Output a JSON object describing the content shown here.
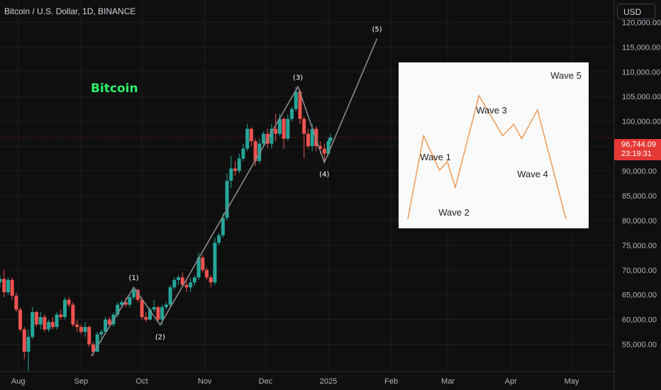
{
  "header": {
    "symbol_title": "Bitcoin / U.S. Dollar, 1D, BINANCE"
  },
  "toolbar": {
    "currency": "USD"
  },
  "price_tag": {
    "price": "96,744.09",
    "countdown": "23:19:31"
  },
  "annotation_text": "Bitcoin",
  "inset": {
    "labels": [
      "Wave 1",
      "Wave 2",
      "Wave 3",
      "Wave 4",
      "Wave 5"
    ],
    "path_x": [
      0,
      1,
      2,
      2.5,
      3,
      4.5,
      6,
      6.7,
      7.2,
      8.2,
      10
    ],
    "path_y": [
      0,
      2.9,
      1.7,
      2,
      1.1,
      4.3,
      2.9,
      3.3,
      2.8,
      3.8,
      0
    ]
  },
  "colors": {
    "background": "#0f0f0f",
    "up_candle": "#26a69a",
    "down_candle": "#ef5350",
    "wave_line": "#8a8a8a",
    "bitcoin_label": "#2ef26b",
    "inset_line": "#f0a060",
    "axis_text": "#b2b5be",
    "price_line": "#e53935"
  },
  "chart_data": {
    "type": "candlestick",
    "title": "Bitcoin / U.S. Dollar, 1D, BINANCE",
    "y_axis": {
      "ticks": [
        55000,
        60000,
        65000,
        70000,
        75000,
        80000,
        85000,
        90000,
        95000,
        100000,
        105000,
        110000,
        115000,
        120000
      ],
      "tick_labels": [
        "55,000.00",
        "60,000.00",
        "65,000.00",
        "70,000.00",
        "75,000.00",
        "80,000.00",
        "85,000.00",
        "90,000.00",
        "95,000.00",
        "100,000.00",
        "105,000.00",
        "110,000.00",
        "115,000.00",
        "120,000.00"
      ],
      "ylim": [
        49500,
        124500
      ]
    },
    "x_axis": {
      "tick_labels": [
        "Aug",
        "Sep",
        "Oct",
        "Nov",
        "Dec",
        "2025",
        "Feb",
        "Mar",
        "Apr",
        "May"
      ],
      "tick_dates": [
        "2024-08-01",
        "2024-09-01",
        "2024-10-01",
        "2024-11-01",
        "2024-12-01",
        "2025-01-01",
        "2025-02-01",
        "2025-03-01",
        "2025-04-01",
        "2025-05-01"
      ],
      "xlim": [
        "2024-07-23",
        "2025-05-22"
      ]
    },
    "last_price": 96744.09,
    "elliott_waves": [
      {
        "label": "",
        "date": "2024-09-06",
        "price": 52600
      },
      {
        "label": "(1)",
        "date": "2024-09-27",
        "price": 66500
      },
      {
        "label": "(2)",
        "date": "2024-10-10",
        "price": 58900
      },
      {
        "label": "(3)",
        "date": "2024-12-17",
        "price": 107000
      },
      {
        "label": "(4)",
        "date": "2024-12-30",
        "price": 91700
      },
      {
        "label": "(5)",
        "date": "2025-01-25",
        "price": 116700
      }
    ],
    "candles": [
      {
        "date": "2024-07-23",
        "o": 67500,
        "h": 69000,
        "l": 66500,
        "c": 68200
      },
      {
        "date": "2024-07-25",
        "o": 68200,
        "h": 70000,
        "l": 64500,
        "c": 65500
      },
      {
        "date": "2024-07-27",
        "o": 65500,
        "h": 68500,
        "l": 65000,
        "c": 68000
      },
      {
        "date": "2024-07-29",
        "o": 68000,
        "h": 68500,
        "l": 64000,
        "c": 64800
      },
      {
        "date": "2024-07-31",
        "o": 64800,
        "h": 65500,
        "l": 61500,
        "c": 62000
      },
      {
        "date": "2024-08-02",
        "o": 62000,
        "h": 62500,
        "l": 57500,
        "c": 58000
      },
      {
        "date": "2024-08-04",
        "o": 58000,
        "h": 58500,
        "l": 52000,
        "c": 53500
      },
      {
        "date": "2024-08-06",
        "o": 53500,
        "h": 58000,
        "l": 49500,
        "c": 56500
      },
      {
        "date": "2024-08-08",
        "o": 56500,
        "h": 62500,
        "l": 56000,
        "c": 61500
      },
      {
        "date": "2024-08-10",
        "o": 61500,
        "h": 61800,
        "l": 58500,
        "c": 59000
      },
      {
        "date": "2024-08-12",
        "o": 59000,
        "h": 61500,
        "l": 58000,
        "c": 60500
      },
      {
        "date": "2024-08-14",
        "o": 60500,
        "h": 61000,
        "l": 57500,
        "c": 58000
      },
      {
        "date": "2024-08-16",
        "o": 58000,
        "h": 60000,
        "l": 57500,
        "c": 59500
      },
      {
        "date": "2024-08-18",
        "o": 59500,
        "h": 60500,
        "l": 58000,
        "c": 58500
      },
      {
        "date": "2024-08-20",
        "o": 58500,
        "h": 61500,
        "l": 58000,
        "c": 61000
      },
      {
        "date": "2024-08-22",
        "o": 61000,
        "h": 62000,
        "l": 60000,
        "c": 60500
      },
      {
        "date": "2024-08-24",
        "o": 60500,
        "h": 64500,
        "l": 60000,
        "c": 64000
      },
      {
        "date": "2024-08-26",
        "o": 64000,
        "h": 64500,
        "l": 62500,
        "c": 63000
      },
      {
        "date": "2024-08-28",
        "o": 63000,
        "h": 63500,
        "l": 58500,
        "c": 59000
      },
      {
        "date": "2024-08-30",
        "o": 59000,
        "h": 60000,
        "l": 57500,
        "c": 58500
      },
      {
        "date": "2024-09-01",
        "o": 58500,
        "h": 59000,
        "l": 57000,
        "c": 57500
      },
      {
        "date": "2024-09-03",
        "o": 57500,
        "h": 59500,
        "l": 56500,
        "c": 58500
      },
      {
        "date": "2024-09-05",
        "o": 58500,
        "h": 58800,
        "l": 54500,
        "c": 55000
      },
      {
        "date": "2024-09-07",
        "o": 55000,
        "h": 55500,
        "l": 52600,
        "c": 53500
      },
      {
        "date": "2024-09-09",
        "o": 53500,
        "h": 57500,
        "l": 53500,
        "c": 57000
      },
      {
        "date": "2024-09-11",
        "o": 57000,
        "h": 58000,
        "l": 55500,
        "c": 57500
      },
      {
        "date": "2024-09-13",
        "o": 57500,
        "h": 60500,
        "l": 57000,
        "c": 60000
      },
      {
        "date": "2024-09-15",
        "o": 60000,
        "h": 60500,
        "l": 58500,
        "c": 59000
      },
      {
        "date": "2024-09-17",
        "o": 59000,
        "h": 61500,
        "l": 58500,
        "c": 61000
      },
      {
        "date": "2024-09-19",
        "o": 61000,
        "h": 63500,
        "l": 60500,
        "c": 63000
      },
      {
        "date": "2024-09-21",
        "o": 63000,
        "h": 64000,
        "l": 62500,
        "c": 63500
      },
      {
        "date": "2024-09-23",
        "o": 63500,
        "h": 64500,
        "l": 62500,
        "c": 63000
      },
      {
        "date": "2024-09-25",
        "o": 63000,
        "h": 65000,
        "l": 62500,
        "c": 64500
      },
      {
        "date": "2024-09-27",
        "o": 64500,
        "h": 66500,
        "l": 64000,
        "c": 66000
      },
      {
        "date": "2024-09-29",
        "o": 66000,
        "h": 66200,
        "l": 63500,
        "c": 64000
      },
      {
        "date": "2024-10-01",
        "o": 64000,
        "h": 64500,
        "l": 60000,
        "c": 60500
      },
      {
        "date": "2024-10-03",
        "o": 60500,
        "h": 61500,
        "l": 59500,
        "c": 60000
      },
      {
        "date": "2024-10-05",
        "o": 60000,
        "h": 62500,
        "l": 59800,
        "c": 62000
      },
      {
        "date": "2024-10-07",
        "o": 62000,
        "h": 64000,
        "l": 61500,
        "c": 62500
      },
      {
        "date": "2024-10-09",
        "o": 62500,
        "h": 62800,
        "l": 59500,
        "c": 60000
      },
      {
        "date": "2024-10-11",
        "o": 60000,
        "h": 63000,
        "l": 58900,
        "c": 62500
      },
      {
        "date": "2024-10-13",
        "o": 62500,
        "h": 63500,
        "l": 62000,
        "c": 63000
      },
      {
        "date": "2024-10-15",
        "o": 63000,
        "h": 67000,
        "l": 62500,
        "c": 66500
      },
      {
        "date": "2024-10-17",
        "o": 66500,
        "h": 68500,
        "l": 66000,
        "c": 68000
      },
      {
        "date": "2024-10-19",
        "o": 68000,
        "h": 69000,
        "l": 67000,
        "c": 68500
      },
      {
        "date": "2024-10-21",
        "o": 68500,
        "h": 69500,
        "l": 66500,
        "c": 67000
      },
      {
        "date": "2024-10-23",
        "o": 67000,
        "h": 68000,
        "l": 65500,
        "c": 66500
      },
      {
        "date": "2024-10-25",
        "o": 66500,
        "h": 68500,
        "l": 65500,
        "c": 67500
      },
      {
        "date": "2024-10-27",
        "o": 67500,
        "h": 69000,
        "l": 66800,
        "c": 68500
      },
      {
        "date": "2024-10-29",
        "o": 68500,
        "h": 73500,
        "l": 68000,
        "c": 72500
      },
      {
        "date": "2024-10-31",
        "o": 72500,
        "h": 73000,
        "l": 69500,
        "c": 70000
      },
      {
        "date": "2024-11-02",
        "o": 70000,
        "h": 70500,
        "l": 68000,
        "c": 68500
      },
      {
        "date": "2024-11-04",
        "o": 68500,
        "h": 69000,
        "l": 66500,
        "c": 67500
      },
      {
        "date": "2024-11-06",
        "o": 67500,
        "h": 76500,
        "l": 67000,
        "c": 75500
      },
      {
        "date": "2024-11-08",
        "o": 75500,
        "h": 77500,
        "l": 75000,
        "c": 77000
      },
      {
        "date": "2024-11-10",
        "o": 77000,
        "h": 81500,
        "l": 76500,
        "c": 80500
      },
      {
        "date": "2024-11-12",
        "o": 80500,
        "h": 89500,
        "l": 80000,
        "c": 88000
      },
      {
        "date": "2024-11-14",
        "o": 88000,
        "h": 93000,
        "l": 86500,
        "c": 90500
      },
      {
        "date": "2024-11-16",
        "o": 90500,
        "h": 92000,
        "l": 89000,
        "c": 90000
      },
      {
        "date": "2024-11-18",
        "o": 90000,
        "h": 93500,
        "l": 89500,
        "c": 92500
      },
      {
        "date": "2024-11-20",
        "o": 92500,
        "h": 95500,
        "l": 92000,
        "c": 94500
      },
      {
        "date": "2024-11-22",
        "o": 94500,
        "h": 99500,
        "l": 94000,
        "c": 98500
      },
      {
        "date": "2024-11-24",
        "o": 98500,
        "h": 98800,
        "l": 95000,
        "c": 96000
      },
      {
        "date": "2024-11-26",
        "o": 96000,
        "h": 96500,
        "l": 91000,
        "c": 92000
      },
      {
        "date": "2024-11-28",
        "o": 92000,
        "h": 96500,
        "l": 91500,
        "c": 95500
      },
      {
        "date": "2024-11-30",
        "o": 95500,
        "h": 98000,
        "l": 95000,
        "c": 97500
      },
      {
        "date": "2024-12-02",
        "o": 97500,
        "h": 98500,
        "l": 94500,
        "c": 95500
      },
      {
        "date": "2024-12-04",
        "o": 95500,
        "h": 99500,
        "l": 94500,
        "c": 98500
      },
      {
        "date": "2024-12-06",
        "o": 98500,
        "h": 101500,
        "l": 96000,
        "c": 97500
      },
      {
        "date": "2024-12-08",
        "o": 97500,
        "h": 101500,
        "l": 97000,
        "c": 100500
      },
      {
        "date": "2024-12-10",
        "o": 100500,
        "h": 100800,
        "l": 94500,
        "c": 96500
      },
      {
        "date": "2024-12-12",
        "o": 96500,
        "h": 101500,
        "l": 96000,
        "c": 100500
      },
      {
        "date": "2024-12-14",
        "o": 100500,
        "h": 103000,
        "l": 100000,
        "c": 102500
      },
      {
        "date": "2024-12-16",
        "o": 102500,
        "h": 107000,
        "l": 102000,
        "c": 106000
      },
      {
        "date": "2024-12-18",
        "o": 106000,
        "h": 106500,
        "l": 99500,
        "c": 100500
      },
      {
        "date": "2024-12-20",
        "o": 100500,
        "h": 101000,
        "l": 92500,
        "c": 97500
      },
      {
        "date": "2024-12-22",
        "o": 97500,
        "h": 98500,
        "l": 94500,
        "c": 95000
      },
      {
        "date": "2024-12-24",
        "o": 95000,
        "h": 99500,
        "l": 94000,
        "c": 98500
      },
      {
        "date": "2024-12-26",
        "o": 98500,
        "h": 99000,
        "l": 94000,
        "c": 95000
      },
      {
        "date": "2024-12-28",
        "o": 95000,
        "h": 96000,
        "l": 93500,
        "c": 94500
      },
      {
        "date": "2024-12-30",
        "o": 94500,
        "h": 95500,
        "l": 91700,
        "c": 93500
      },
      {
        "date": "2025-01-01",
        "o": 93500,
        "h": 96500,
        "l": 93000,
        "c": 96000
      },
      {
        "date": "2025-01-02",
        "o": 96000,
        "h": 97500,
        "l": 95500,
        "c": 96744
      }
    ]
  }
}
